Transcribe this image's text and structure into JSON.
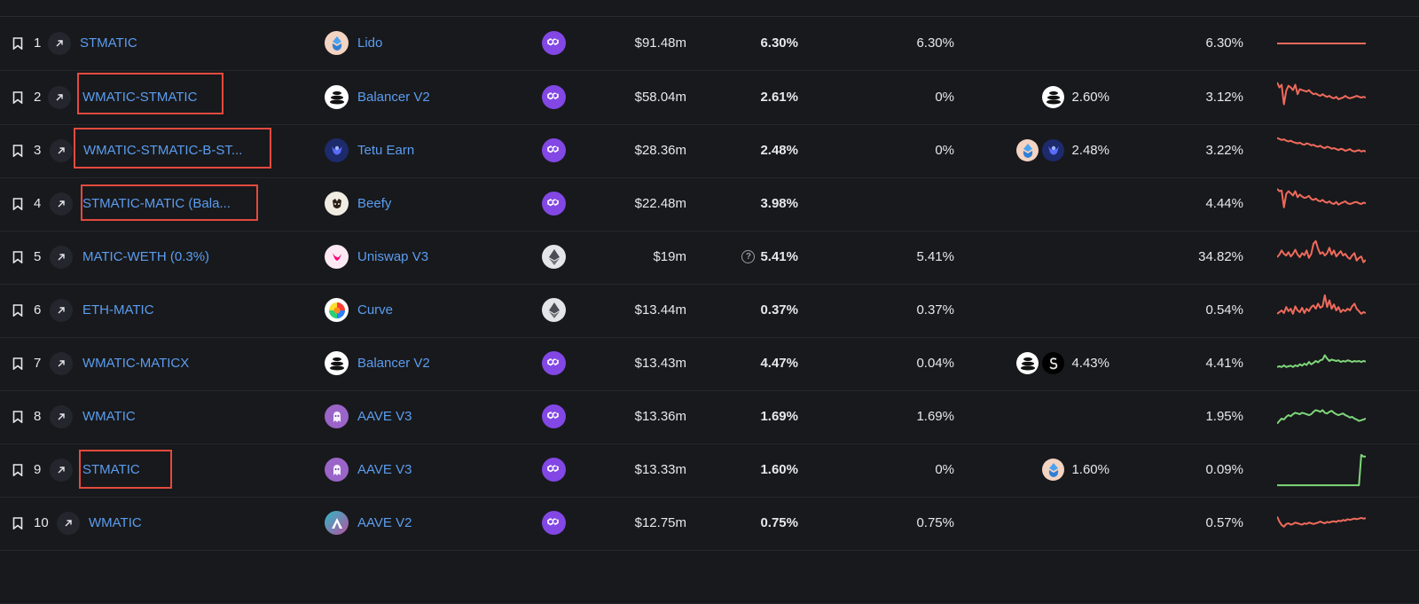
{
  "colors": {
    "link": "#5b9df0",
    "negative_trend": "#f06a5c",
    "positive_trend": "#7ed77a",
    "highlight_box": "#e34a3f"
  },
  "rows": [
    {
      "rank": "1",
      "pool": "STMATIC",
      "project": "Lido",
      "project_icon": "lido-icon",
      "chain": "polygon-icon",
      "tvl": "$91.48m",
      "apy": "6.30%",
      "apy_question": false,
      "base": "6.30%",
      "reward_icons": [],
      "reward": "",
      "avg": "6.30%",
      "trend": "down",
      "spark": [
        50,
        50,
        50,
        50,
        50,
        50,
        50,
        50,
        50,
        50,
        50,
        50,
        50,
        50,
        50,
        50,
        50,
        50,
        50,
        50,
        50,
        50,
        50,
        50,
        50,
        50,
        50,
        50,
        50,
        50,
        50,
        50,
        50,
        50,
        50,
        50,
        50,
        50,
        50,
        50
      ]
    },
    {
      "rank": "2",
      "pool": "WMATIC-STMATIC",
      "project": "Balancer V2",
      "project_icon": "balancer-icon",
      "chain": "polygon-icon",
      "tvl": "$58.04m",
      "apy": "2.61%",
      "apy_question": false,
      "base": "0%",
      "reward_icons": [
        "balancer-icon"
      ],
      "reward": "2.60%",
      "avg": "3.12%",
      "trend": "down",
      "spark": [
        95,
        80,
        88,
        30,
        70,
        85,
        80,
        72,
        88,
        60,
        75,
        72,
        70,
        68,
        72,
        65,
        60,
        62,
        58,
        55,
        60,
        55,
        52,
        55,
        50,
        48,
        52,
        45,
        48,
        50,
        55,
        50,
        48,
        50,
        52,
        55,
        52,
        50,
        52,
        50
      ]
    },
    {
      "rank": "3",
      "pool": "WMATIC-STMATIC-B-ST...",
      "project": "Tetu Earn",
      "project_icon": "tetu-icon",
      "chain": "polygon-icon",
      "tvl": "$28.36m",
      "apy": "2.48%",
      "apy_question": false,
      "base": "0%",
      "reward_icons": [
        "lido-icon",
        "tetu-icon"
      ],
      "reward": "2.48%",
      "avg": "3.22%",
      "trend": "down",
      "spark": [
        88,
        85,
        82,
        84,
        80,
        78,
        80,
        76,
        74,
        72,
        74,
        70,
        68,
        72,
        70,
        66,
        68,
        64,
        62,
        65,
        60,
        58,
        62,
        60,
        56,
        58,
        55,
        52,
        56,
        54,
        50,
        52,
        55,
        50,
        48,
        50,
        52,
        48,
        50,
        48
      ]
    },
    {
      "rank": "4",
      "pool": "STMATIC-MATIC (Bala...",
      "project": "Beefy",
      "project_icon": "beefy-icon",
      "chain": "polygon-icon",
      "tvl": "$22.48m",
      "apy": "3.98%",
      "apy_question": false,
      "base": "",
      "reward_icons": [],
      "reward": "",
      "avg": "4.44%",
      "trend": "down",
      "spark": [
        95,
        88,
        90,
        40,
        80,
        88,
        82,
        75,
        88,
        70,
        78,
        72,
        68,
        70,
        74,
        65,
        62,
        66,
        60,
        58,
        62,
        56,
        54,
        58,
        52,
        50,
        56,
        48,
        52,
        55,
        58,
        52,
        50,
        52,
        55,
        56,
        52,
        50,
        54,
        52
      ]
    },
    {
      "rank": "5",
      "pool": "MATIC-WETH (0.3%)",
      "project": "Uniswap V3",
      "project_icon": "uniswap-icon",
      "chain": "ethereum-icon",
      "tvl": "$19m",
      "apy": "5.41%",
      "apy_question": true,
      "base": "5.41%",
      "reward_icons": [],
      "reward": "",
      "avg": "34.82%",
      "trend": "down",
      "spark": [
        50,
        58,
        70,
        60,
        55,
        65,
        52,
        60,
        72,
        58,
        50,
        62,
        56,
        70,
        48,
        60,
        90,
        98,
        75,
        60,
        65,
        55,
        62,
        78,
        58,
        70,
        52,
        60,
        68,
        55,
        60,
        50,
        45,
        55,
        62,
        40,
        48,
        52,
        35,
        42
      ]
    },
    {
      "rank": "6",
      "pool": "ETH-MATIC",
      "project": "Curve",
      "project_icon": "curve-icon",
      "chain": "ethereum-icon",
      "tvl": "$13.44m",
      "apy": "0.37%",
      "apy_question": false,
      "base": "0.37%",
      "reward_icons": [],
      "reward": "",
      "avg": "0.54%",
      "trend": "down",
      "spark": [
        40,
        45,
        50,
        42,
        60,
        48,
        55,
        40,
        62,
        50,
        45,
        58,
        42,
        55,
        48,
        60,
        65,
        55,
        70,
        58,
        62,
        95,
        60,
        80,
        55,
        68,
        50,
        60,
        45,
        52,
        48,
        55,
        50,
        62,
        70,
        55,
        48,
        40,
        45,
        42
      ]
    },
    {
      "rank": "7",
      "pool": "WMATIC-MATICX",
      "project": "Balancer V2",
      "project_icon": "balancer-icon",
      "chain": "polygon-icon",
      "tvl": "$13.43m",
      "apy": "4.47%",
      "apy_question": false,
      "base": "0.04%",
      "reward_icons": [
        "balancer-icon",
        "stader-icon"
      ],
      "reward": "4.43%",
      "avg": "4.41%",
      "trend": "up",
      "spark": [
        40,
        42,
        40,
        45,
        40,
        42,
        44,
        40,
        45,
        42,
        48,
        44,
        50,
        46,
        55,
        48,
        52,
        58,
        54,
        60,
        62,
        75,
        65,
        58,
        62,
        60,
        58,
        60,
        55,
        58,
        56,
        60,
        58,
        55,
        58,
        56,
        58,
        55,
        58,
        56
      ]
    },
    {
      "rank": "8",
      "pool": "WMATIC",
      "project": "AAVE V3",
      "project_icon": "aave-icon",
      "chain": "polygon-icon",
      "tvl": "$13.36m",
      "apy": "1.69%",
      "apy_question": false,
      "base": "1.69%",
      "reward_icons": [],
      "reward": "",
      "avg": "1.95%",
      "trend": "up",
      "spark": [
        30,
        38,
        45,
        42,
        50,
        55,
        52,
        58,
        62,
        60,
        58,
        62,
        60,
        58,
        55,
        58,
        65,
        70,
        68,
        65,
        70,
        62,
        60,
        65,
        68,
        62,
        58,
        55,
        58,
        60,
        55,
        52,
        48,
        50,
        45,
        42,
        38,
        40,
        42,
        45
      ]
    },
    {
      "rank": "9",
      "pool": "STMATIC",
      "project": "AAVE V3",
      "project_icon": "aave-icon",
      "chain": "polygon-icon",
      "tvl": "$13.33m",
      "apy": "1.60%",
      "apy_question": false,
      "base": "0%",
      "reward_icons": [
        "lido-icon"
      ],
      "reward": "1.60%",
      "avg": "0.09%",
      "trend": "up",
      "spark": [
        5,
        5,
        5,
        5,
        5,
        5,
        5,
        5,
        5,
        5,
        5,
        5,
        5,
        5,
        5,
        5,
        5,
        5,
        5,
        5,
        5,
        5,
        5,
        5,
        5,
        5,
        5,
        5,
        5,
        5,
        5,
        5,
        5,
        5,
        5,
        5,
        5,
        95,
        90,
        90
      ]
    },
    {
      "rank": "10",
      "pool": "WMATIC",
      "project": "AAVE V2",
      "project_icon": "aave-v2-icon",
      "chain": "polygon-icon",
      "tvl": "$12.75m",
      "apy": "0.75%",
      "apy_question": false,
      "base": "0.75%",
      "reward_icons": [],
      "reward": "",
      "avg": "0.57%",
      "trend": "down",
      "spark": [
        70,
        55,
        45,
        40,
        48,
        50,
        46,
        48,
        52,
        50,
        48,
        46,
        50,
        48,
        52,
        50,
        48,
        50,
        52,
        55,
        52,
        50,
        54,
        52,
        55,
        56,
        54,
        58,
        56,
        60,
        58,
        62,
        60,
        62,
        64,
        62,
        64,
        66,
        64,
        65
      ]
    }
  ],
  "highlights": [
    2,
    3,
    4,
    9
  ]
}
